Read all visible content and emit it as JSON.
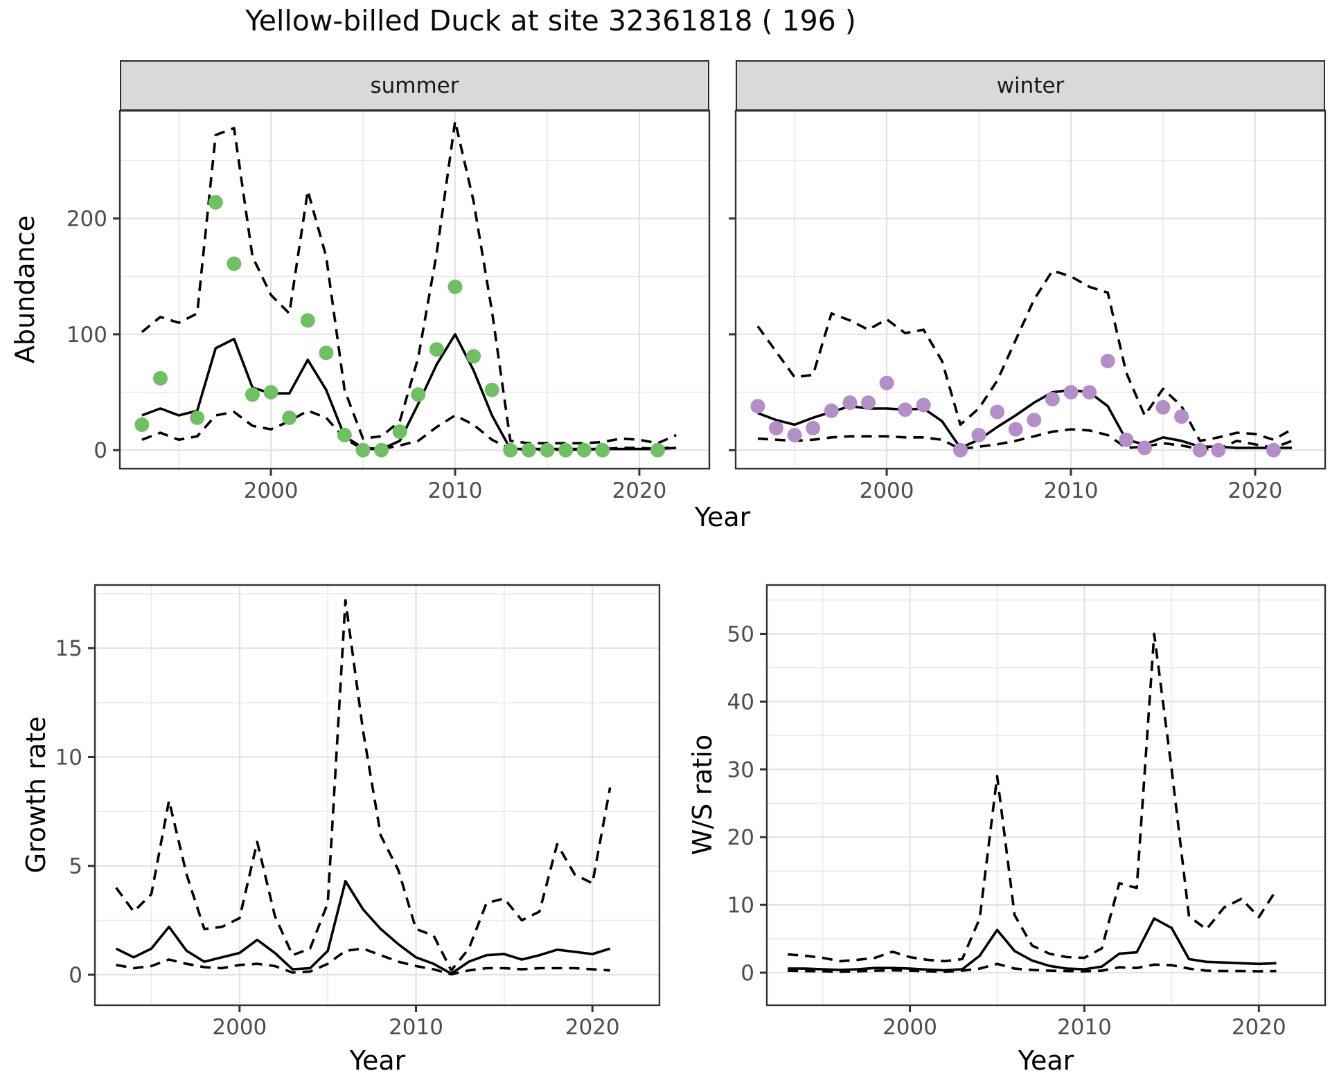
{
  "title": "Yellow-billed Duck at site 32361818 ( 196 )",
  "facets": [
    {
      "label": "summer"
    },
    {
      "label": "winter"
    }
  ],
  "labels": {
    "abundance": "Abundance",
    "growth": "Growth rate",
    "ws": "W/S ratio",
    "year": "Year"
  },
  "colors": {
    "line": "#000000",
    "grid_major": "#e3e3e3",
    "grid_minor": "#ececec",
    "axis_text": "#4d4d4d",
    "tick_mark": "#333333",
    "panel_border": "#333333",
    "strip_bg": "#d9d9d9",
    "points_summer": "#6fbf63",
    "points_winter": "#b48ec8"
  },
  "chart_data": [
    {
      "id": "abundance-summer",
      "type": "line",
      "facet": "summer",
      "ylabel": "Abundance",
      "xlabel": "Year",
      "xlim": [
        1991.8,
        2023.8
      ],
      "ylim": [
        -16,
        293
      ],
      "xticks": [
        2000,
        2010,
        2020
      ],
      "xticks_minor": [
        1995,
        2005,
        2015
      ],
      "yticks": [
        0,
        100,
        200
      ],
      "yticks_minor": [
        50,
        150,
        250
      ],
      "x": [
        1993,
        1994,
        1995,
        1996,
        1997,
        1998,
        1999,
        2000,
        2001,
        2002,
        2003,
        2004,
        2005,
        2006,
        2007,
        2008,
        2009,
        2010,
        2011,
        2012,
        2013,
        2014,
        2015,
        2016,
        2017,
        2018,
        2019,
        2020,
        2021,
        2022
      ],
      "series": [
        {
          "name": "upper-ci",
          "style": "dashed",
          "y": [
            102,
            115,
            110,
            118,
            272,
            278,
            167,
            134,
            118,
            224,
            167,
            52,
            10,
            12,
            25,
            80,
            170,
            284,
            215,
            120,
            8,
            6,
            6,
            6,
            6,
            7,
            10,
            9,
            6,
            13
          ]
        },
        {
          "name": "fitted-mean",
          "style": "solid",
          "y": [
            30,
            36,
            30,
            34,
            88,
            96,
            54,
            49,
            49,
            78,
            52,
            12,
            2,
            1,
            8,
            40,
            74,
            100,
            69,
            30,
            1,
            1,
            1,
            1,
            1,
            1,
            1,
            1,
            1,
            2
          ]
        },
        {
          "name": "lower-ci",
          "style": "dashed",
          "y": [
            9,
            15,
            9,
            12,
            30,
            33,
            21,
            18,
            25,
            34,
            28,
            10,
            1,
            1,
            4,
            8,
            20,
            30,
            22,
            9,
            1,
            0.5,
            0.5,
            0.5,
            0.5,
            1,
            2,
            2,
            1,
            3
          ]
        }
      ],
      "points": {
        "name": "observed-counts",
        "color": "#6fbf63",
        "x": [
          1993,
          1994,
          1996,
          1997,
          1998,
          1999,
          2000,
          2001,
          2002,
          2003,
          2004,
          2005,
          2006,
          2007,
          2008,
          2009,
          2010,
          2011,
          2012,
          2013,
          2014,
          2015,
          2016,
          2017,
          2018,
          2021
        ],
        "y": [
          22,
          62,
          28,
          214,
          161,
          48,
          50,
          28,
          112,
          84,
          13,
          0,
          0,
          16,
          48,
          87,
          141,
          81,
          52,
          0,
          0,
          0,
          0,
          0,
          0,
          0
        ]
      }
    },
    {
      "id": "abundance-winter",
      "type": "line",
      "facet": "winter",
      "ylabel": "Abundance",
      "xlabel": "Year",
      "xlim": [
        1991.8,
        2023.8
      ],
      "ylim": [
        -16,
        293
      ],
      "xticks": [
        2000,
        2010,
        2020
      ],
      "xticks_minor": [
        1995,
        2005,
        2015
      ],
      "yticks": [
        0,
        100,
        200
      ],
      "yticks_minor": [
        50,
        150,
        250
      ],
      "x": [
        1993,
        1994,
        1995,
        1996,
        1997,
        1998,
        1999,
        2000,
        2001,
        2002,
        2003,
        2004,
        2005,
        2006,
        2007,
        2008,
        2009,
        2010,
        2011,
        2012,
        2013,
        2014,
        2015,
        2016,
        2017,
        2018,
        2019,
        2020,
        2021,
        2022
      ],
      "series": [
        {
          "name": "upper-ci",
          "style": "dashed",
          "y": [
            107,
            85,
            63,
            65,
            118,
            112,
            104,
            113,
            101,
            104,
            77,
            22,
            36,
            60,
            95,
            130,
            155,
            150,
            141,
            136,
            67,
            30,
            53,
            38,
            8,
            11,
            15,
            14,
            9,
            18
          ]
        },
        {
          "name": "fitted-mean",
          "style": "solid",
          "y": [
            32,
            26,
            22,
            28,
            33,
            38,
            36,
            36,
            35,
            36,
            25,
            2,
            9,
            20,
            30,
            41,
            50,
            52,
            50,
            38,
            9,
            5,
            11,
            8,
            3,
            3,
            2,
            2,
            2,
            2
          ]
        },
        {
          "name": "lower-ci",
          "style": "dashed",
          "y": [
            10,
            9,
            8,
            9,
            11,
            12,
            12,
            12,
            11,
            11,
            9,
            1,
            3,
            5,
            8,
            12,
            16,
            18,
            17,
            13,
            2,
            3,
            6,
            4,
            1,
            1,
            8,
            5,
            2,
            8
          ]
        }
      ],
      "points": {
        "name": "observed-counts",
        "color": "#b48ec8",
        "x": [
          1993,
          1994,
          1995,
          1996,
          1997,
          1998,
          1999,
          2000,
          2001,
          2002,
          2004,
          2005,
          2006,
          2007,
          2008,
          2009,
          2010,
          2011,
          2012,
          2013,
          2014,
          2015,
          2016,
          2017,
          2018,
          2021
        ],
        "y": [
          38,
          19,
          13,
          19,
          34,
          41,
          41,
          58,
          35,
          39,
          0,
          13,
          33,
          18,
          26,
          44,
          50,
          50,
          77,
          9,
          2,
          37,
          29,
          0,
          0,
          0
        ]
      }
    },
    {
      "id": "growth-rate",
      "type": "line",
      "ylabel": "Growth rate",
      "xlabel": "Year",
      "xlim": [
        1991.8,
        2023.8
      ],
      "ylim": [
        -1.4,
        17.9
      ],
      "xticks": [
        2000,
        2010,
        2020
      ],
      "xticks_minor": [
        1995,
        2005,
        2015
      ],
      "yticks": [
        0,
        5,
        10,
        15
      ],
      "yticks_minor": [
        2.5,
        7.5,
        12.5,
        17.5
      ],
      "x": [
        1993,
        1994,
        1995,
        1996,
        1997,
        1998,
        1999,
        2000,
        2001,
        2002,
        2003,
        2004,
        2005,
        2006,
        2007,
        2008,
        2009,
        2010,
        2011,
        2012,
        2013,
        2014,
        2015,
        2016,
        2017,
        2018,
        2019,
        2020,
        2021
      ],
      "series": [
        {
          "name": "upper-ci",
          "style": "dashed",
          "y": [
            4.0,
            2.9,
            3.7,
            8.0,
            4.6,
            2.1,
            2.2,
            2.6,
            6.1,
            2.7,
            0.9,
            1.2,
            3.3,
            17.2,
            11.2,
            6.4,
            4.8,
            2.1,
            1.8,
            0.2,
            1.2,
            3.3,
            3.5,
            2.5,
            2.9,
            6.0,
            4.6,
            4.2,
            8.6
          ]
        },
        {
          "name": "fitted-mean",
          "style": "solid",
          "y": [
            1.2,
            0.8,
            1.2,
            2.2,
            1.1,
            0.6,
            0.8,
            1.0,
            1.6,
            1.0,
            0.25,
            0.3,
            1.1,
            4.3,
            3.0,
            2.1,
            1.4,
            0.8,
            0.5,
            0.05,
            0.6,
            0.9,
            0.95,
            0.7,
            0.9,
            1.15,
            1.05,
            0.95,
            1.2
          ]
        },
        {
          "name": "lower-ci",
          "style": "dashed",
          "y": [
            0.45,
            0.3,
            0.4,
            0.7,
            0.5,
            0.35,
            0.3,
            0.45,
            0.5,
            0.4,
            0.1,
            0.15,
            0.5,
            1.1,
            1.2,
            0.9,
            0.6,
            0.4,
            0.25,
            0.02,
            0.2,
            0.3,
            0.3,
            0.25,
            0.3,
            0.3,
            0.3,
            0.25,
            0.2
          ]
        }
      ]
    },
    {
      "id": "ws-ratio",
      "type": "line",
      "ylabel": "W/S ratio",
      "xlabel": "Year",
      "xlim": [
        1991.8,
        2023.8
      ],
      "ylim": [
        -4.8,
        57.2
      ],
      "xticks": [
        2000,
        2010,
        2020
      ],
      "xticks_minor": [
        1995,
        2005,
        2015
      ],
      "yticks": [
        0,
        10,
        20,
        30,
        40,
        50
      ],
      "yticks_minor": [
        5,
        15,
        25,
        35,
        45,
        55
      ],
      "x": [
        1993,
        1994,
        1995,
        1996,
        1997,
        1998,
        1999,
        2000,
        2001,
        2002,
        2003,
        2004,
        2005,
        2006,
        2007,
        2008,
        2009,
        2010,
        2011,
        2012,
        2013,
        2014,
        2015,
        2016,
        2017,
        2018,
        2019,
        2020,
        2021
      ],
      "series": [
        {
          "name": "upper-ci",
          "style": "dashed",
          "y": [
            2.7,
            2.5,
            2.2,
            1.7,
            1.9,
            2.2,
            3.1,
            2.3,
            1.9,
            1.7,
            2.0,
            8.0,
            29.0,
            8.5,
            4.0,
            2.8,
            2.3,
            2.2,
            3.6,
            13.2,
            12.5,
            50.0,
            30.0,
            8.3,
            6.4,
            9.6,
            10.9,
            8.2,
            12.2
          ]
        },
        {
          "name": "fitted-mean",
          "style": "solid",
          "y": [
            0.6,
            0.6,
            0.5,
            0.4,
            0.5,
            0.7,
            0.7,
            0.6,
            0.45,
            0.35,
            0.5,
            2.5,
            6.3,
            3.2,
            1.8,
            1.0,
            0.6,
            0.5,
            0.9,
            2.8,
            3.0,
            8.0,
            6.6,
            2.0,
            1.6,
            1.5,
            1.4,
            1.3,
            1.4
          ]
        },
        {
          "name": "lower-ci",
          "style": "dashed",
          "y": [
            0.3,
            0.25,
            0.2,
            0.15,
            0.2,
            0.3,
            0.35,
            0.3,
            0.2,
            0.15,
            0.3,
            0.6,
            1.3,
            0.6,
            0.4,
            0.3,
            0.25,
            0.2,
            0.3,
            0.8,
            0.7,
            1.2,
            1.1,
            0.6,
            0.3,
            0.25,
            0.25,
            0.2,
            0.25
          ]
        }
      ]
    }
  ]
}
